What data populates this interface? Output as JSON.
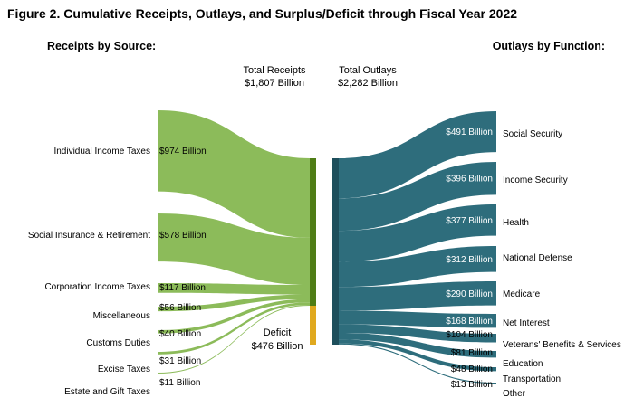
{
  "title": "Figure 2. Cumulative Receipts, Outlays, and Surplus/Deficit through Fiscal Year 2022",
  "receipts_header": "Receipts by Source:",
  "outlays_header": "Outlays by Function:",
  "total_receipts": {
    "label": "Total Receipts",
    "value": "$1,807 Billion"
  },
  "total_outlays": {
    "label": "Total Outlays",
    "value": "$2,282 Billion"
  },
  "deficit": {
    "label": "Deficit",
    "value": "$476 Billion"
  },
  "colors": {
    "receipts": "#8cbb5a",
    "receipts_bar": "#4f7d16",
    "deficit_bar": "#e0a91f",
    "outlays": "#2e6d7c",
    "outlays_bar": "#1e4f5c"
  },
  "receipts": [
    {
      "name": "Individual Income Taxes",
      "value": 974,
      "amount": "$974 Billion"
    },
    {
      "name": "Social Insurance & Retirement",
      "value": 578,
      "amount": "$578 Billion"
    },
    {
      "name": "Corporation Income Taxes",
      "value": 117,
      "amount": "$117 Billion"
    },
    {
      "name": "Miscellaneous",
      "value": 56,
      "amount": "$56 Billion"
    },
    {
      "name": "Customs Duties",
      "value": 40,
      "amount": "$40 Billion"
    },
    {
      "name": "Excise Taxes",
      "value": 31,
      "amount": "$31 Billion"
    },
    {
      "name": "Estate and Gift Taxes",
      "value": 11,
      "amount": "$11 Billion"
    }
  ],
  "outlays": [
    {
      "name": "Social Security",
      "value": 491,
      "amount": "$491 Billion"
    },
    {
      "name": "Income Security",
      "value": 396,
      "amount": "$396 Billion"
    },
    {
      "name": "Health",
      "value": 377,
      "amount": "$377 Billion"
    },
    {
      "name": "National Defense",
      "value": 312,
      "amount": "$312 Billion"
    },
    {
      "name": "Medicare",
      "value": 290,
      "amount": "$290 Billion"
    },
    {
      "name": "Net Interest",
      "value": 168,
      "amount": "$168 Billion"
    },
    {
      "name": "Veterans' Benefits & Services",
      "value": 104,
      "amount": "$104 Billion"
    },
    {
      "name": "Education",
      "value": 81,
      "amount": "$81 Billion"
    },
    {
      "name": "Transportation",
      "value": 48,
      "amount": "$48 Billion"
    },
    {
      "name": "Other",
      "value": 13,
      "amount": "$13 Billion"
    }
  ]
}
